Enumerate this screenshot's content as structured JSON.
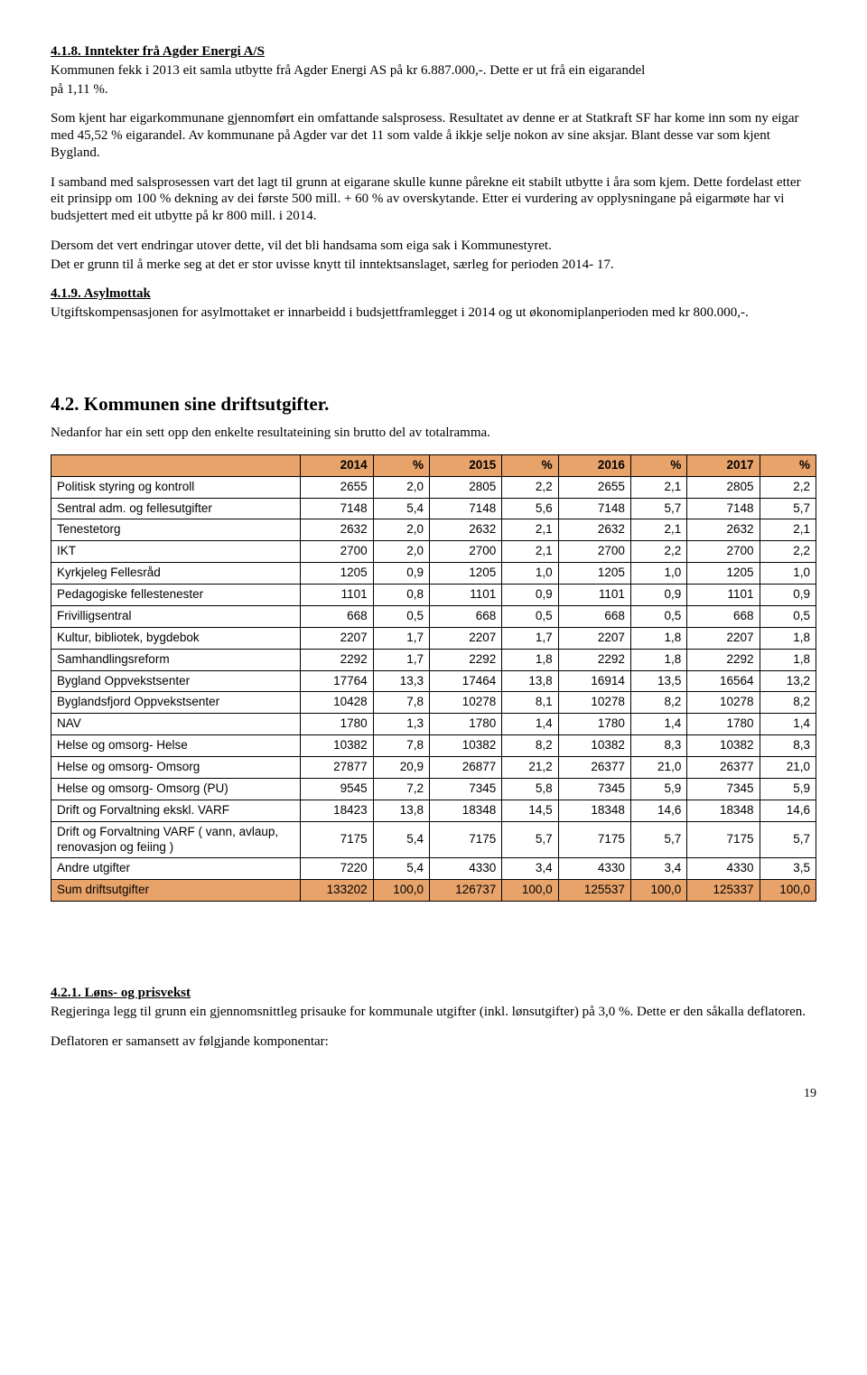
{
  "s418": {
    "heading": "4.1.8. Inntekter frå Agder Energi A/S",
    "p1a": "Kommunen fekk i 2013 eit samla utbytte frå Agder Energi AS på  kr 6.887.000,-. Dette er ut frå ein eigarandel",
    "p1b": "på 1,11 %.",
    "p2": "Som kjent har eigarkommunane gjennomført ein omfattande salsprosess. Resultatet av denne er at Statkraft SF har kome inn som ny eigar med 45,52 % eigarandel. Av kommunane på Agder var det 11 som valde å ikkje selje nokon av sine aksjar. Blant desse var som kjent Bygland.",
    "p3": "I samband med salsprosessen vart det lagt til grunn at eigarane skulle kunne pårekne eit stabilt utbytte i åra som kjem. Dette fordelast etter eit prinsipp om 100 % dekning av dei første 500 mill.  + 60 % av overskytande. Etter ei vurdering av opplysningane på eigarmøte har vi budsjettert med eit utbytte på kr 800 mill. i 2014.",
    "p4a": "Dersom det vert endringar utover dette, vil det bli handsama som eiga sak i Kommunestyret.",
    "p4b": "Det er grunn til å merke seg at det er stor uvisse knytt til inntektsanslaget, særleg for perioden 2014- 17."
  },
  "s419": {
    "heading": "4.1.9. Asylmottak",
    "p1": "Utgiftskompensasjonen for asylmottaket er innarbeidd i budsjettframlegget i 2014 og ut økonomiplanperioden med kr 800.000,-."
  },
  "s42": {
    "heading": "4.2. Kommunen sine driftsutgifter.",
    "intro": "Nedanfor har ein sett opp den enkelte resultateining sin brutto del av totalramma."
  },
  "table": {
    "headers": [
      "",
      "2014",
      "%",
      "2015",
      "%",
      "2016",
      "%",
      "2017",
      "%"
    ],
    "rows": [
      {
        "label": "Politisk styring og kontroll",
        "c": [
          "2655",
          "2,0",
          "2805",
          "2,2",
          "2655",
          "2,1",
          "2805",
          "2,2"
        ]
      },
      {
        "label": "Sentral adm. og fellesutgifter",
        "c": [
          "7148",
          "5,4",
          "7148",
          "5,6",
          "7148",
          "5,7",
          "7148",
          "5,7"
        ]
      },
      {
        "label": "Tenestetorg",
        "c": [
          "2632",
          "2,0",
          "2632",
          "2,1",
          "2632",
          "2,1",
          "2632",
          "2,1"
        ]
      },
      {
        "label": "IKT",
        "c": [
          "2700",
          "2,0",
          "2700",
          "2,1",
          "2700",
          "2,2",
          "2700",
          "2,2"
        ]
      },
      {
        "label": "Kyrkjeleg Fellesråd",
        "c": [
          "1205",
          "0,9",
          "1205",
          "1,0",
          "1205",
          "1,0",
          "1205",
          "1,0"
        ]
      },
      {
        "label": "Pedagogiske fellestenester",
        "c": [
          "1101",
          "0,8",
          "1101",
          "0,9",
          "1101",
          "0,9",
          "1101",
          "0,9"
        ]
      },
      {
        "label": "Frivilligsentral",
        "c": [
          "668",
          "0,5",
          "668",
          "0,5",
          "668",
          "0,5",
          "668",
          "0,5"
        ]
      },
      {
        "label": "Kultur, bibliotek, bygdebok",
        "c": [
          "2207",
          "1,7",
          "2207",
          "1,7",
          "2207",
          "1,8",
          "2207",
          "1,8"
        ]
      },
      {
        "label": "Samhandlingsreform",
        "c": [
          "2292",
          "1,7",
          "2292",
          "1,8",
          "2292",
          "1,8",
          "2292",
          "1,8"
        ]
      },
      {
        "label": "Bygland Oppvekstsenter",
        "c": [
          "17764",
          "13,3",
          "17464",
          "13,8",
          "16914",
          "13,5",
          "16564",
          "13,2"
        ]
      },
      {
        "label": "Byglandsfjord Oppvekstsenter",
        "c": [
          "10428",
          "7,8",
          "10278",
          "8,1",
          "10278",
          "8,2",
          "10278",
          "8,2"
        ]
      },
      {
        "label": "NAV",
        "c": [
          "1780",
          "1,3",
          "1780",
          "1,4",
          "1780",
          "1,4",
          "1780",
          "1,4"
        ]
      },
      {
        "label": "Helse og omsorg- Helse",
        "c": [
          "10382",
          "7,8",
          "10382",
          "8,2",
          "10382",
          "8,3",
          "10382",
          "8,3"
        ]
      },
      {
        "label": "Helse og omsorg- Omsorg",
        "c": [
          "27877",
          "20,9",
          "26877",
          "21,2",
          "26377",
          "21,0",
          "26377",
          "21,0"
        ]
      },
      {
        "label": "Helse og omsorg- Omsorg (PU)",
        "c": [
          "9545",
          "7,2",
          "7345",
          "5,8",
          "7345",
          "5,9",
          "7345",
          "5,9"
        ]
      },
      {
        "label": "Drift og Forvaltning ekskl. VARF",
        "c": [
          "18423",
          "13,8",
          "18348",
          "14,5",
          "18348",
          "14,6",
          "18348",
          "14,6"
        ]
      },
      {
        "label": "Drift og Forvaltning VARF ( vann, avlaup, renovasjon og feiing )",
        "c": [
          "7175",
          "5,4",
          "7175",
          "5,7",
          "7175",
          "5,7",
          "7175",
          "5,7"
        ]
      },
      {
        "label": "Andre utgifter",
        "c": [
          "7220",
          "5,4",
          "4330",
          "3,4",
          "4330",
          "3,4",
          "4330",
          "3,5"
        ]
      }
    ],
    "sum": {
      "label": "Sum driftsutgifter",
      "c": [
        "133202",
        "100,0",
        "126737",
        "100,0",
        "125537",
        "100,0",
        "125337",
        "100,0"
      ]
    }
  },
  "s421": {
    "heading": "4.2.1. Løns- og prisvekst",
    "p1": "Regjeringa legg til grunn ein gjennomsnittleg prisauke for kommunale utgifter (inkl. lønsutgifter) på 3,0 %. Dette er den såkalla deflatoren.",
    "p2": "Deflatoren er samansett av følgjande komponentar:"
  },
  "pagenum": "19"
}
